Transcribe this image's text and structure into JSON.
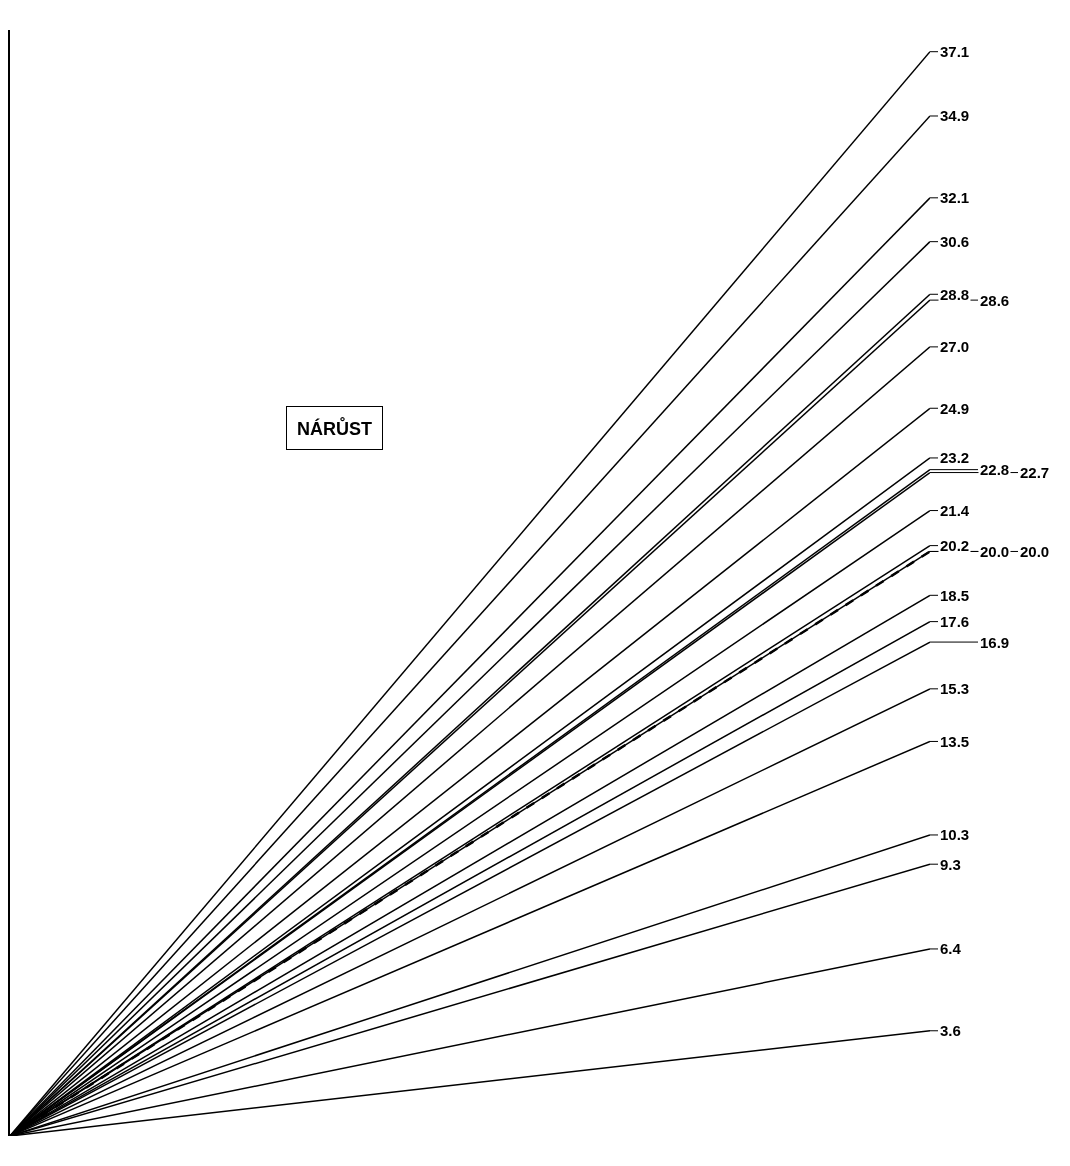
{
  "chart_data": {
    "type": "line",
    "title": "NÁRŮST",
    "categories": [
      null,
      null
    ],
    "series": [
      {
        "color": "#000000",
        "values": [
          0,
          37.1
        ],
        "value_labels": [
          null,
          "37.1"
        ]
      },
      {
        "color": "#000000",
        "values": [
          0,
          34.9
        ],
        "value_labels": [
          null,
          "34.9"
        ]
      },
      {
        "color": "#000000",
        "values": [
          0,
          32.1
        ],
        "value_labels": [
          null,
          "32.1"
        ]
      },
      {
        "color": "#000000",
        "values": [
          0,
          30.6
        ],
        "value_labels": [
          null,
          "30.6"
        ]
      },
      {
        "color": "#000000",
        "values": [
          0,
          28.8
        ],
        "value_labels": [
          null,
          "28.8"
        ]
      },
      {
        "color": "#000000",
        "values": [
          0,
          28.6
        ],
        "value_labels": [
          null,
          "28.6"
        ]
      },
      {
        "color": "#000000",
        "values": [
          0,
          27.0
        ],
        "value_labels": [
          null,
          "27.0"
        ]
      },
      {
        "color": "#000000",
        "values": [
          0,
          24.9
        ],
        "value_labels": [
          null,
          "24.9"
        ]
      },
      {
        "color": "#000000",
        "values": [
          0,
          23.2
        ],
        "value_labels": [
          null,
          "23.2"
        ]
      },
      {
        "color": "#000000",
        "values": [
          0,
          22.8
        ],
        "value_labels": [
          null,
          "22.8"
        ]
      },
      {
        "color": "#000000",
        "values": [
          0,
          22.7
        ],
        "value_labels": [
          null,
          "22.7"
        ]
      },
      {
        "color": "#000000",
        "values": [
          0,
          20.0
        ],
        "value_labels": [
          null,
          "20.0"
        ],
        "line_style": "dashed"
      },
      {
        "color": "#000000",
        "values": [
          0,
          21.4
        ],
        "value_labels": [
          null,
          "21.4"
        ]
      },
      {
        "color": "#000000",
        "values": [
          0,
          20.2
        ],
        "value_labels": [
          null,
          "20.2"
        ]
      },
      {
        "color": "#000000",
        "values": [
          0,
          20.0
        ],
        "value_labels": [
          null,
          "20.0"
        ]
      },
      {
        "color": "#000000",
        "values": [
          0,
          18.5
        ],
        "value_labels": [
          null,
          "18.5"
        ]
      },
      {
        "color": "#000000",
        "values": [
          0,
          17.6
        ],
        "value_labels": [
          null,
          "17.6"
        ]
      },
      {
        "color": "#000000",
        "values": [
          0,
          16.9
        ],
        "value_labels": [
          null,
          "16.9"
        ]
      },
      {
        "color": "#000000",
        "values": [
          0,
          15.3
        ],
        "value_labels": [
          null,
          "15.3"
        ]
      },
      {
        "color": "#000000",
        "values": [
          0,
          13.5
        ],
        "value_labels": [
          null,
          "13.5"
        ]
      },
      {
        "color": "#000000",
        "values": [
          0,
          10.3
        ],
        "value_labels": [
          null,
          "10.3"
        ]
      },
      {
        "color": "#000000",
        "values": [
          0,
          9.3
        ],
        "value_labels": [
          null,
          "9.3"
        ]
      },
      {
        "color": "#000000",
        "values": [
          0,
          6.4
        ],
        "value_labels": [
          null,
          "6.4"
        ]
      },
      {
        "color": "#000000",
        "values": [
          0,
          3.6
        ],
        "value_labels": [
          null,
          "3.6"
        ]
      }
    ]
  }
}
